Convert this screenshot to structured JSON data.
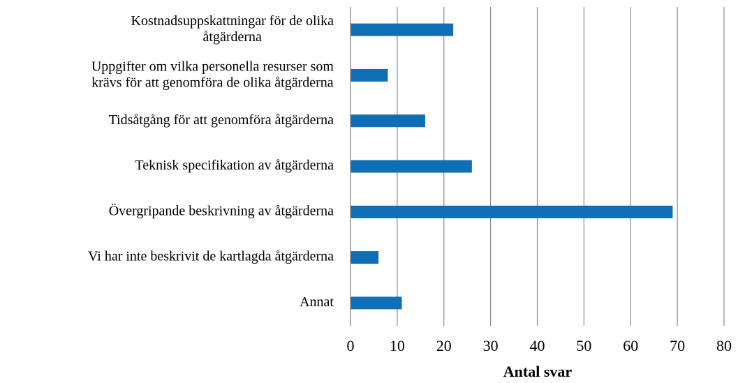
{
  "chart_data": {
    "type": "bar",
    "orientation": "horizontal",
    "categories": [
      "Kostnadsuppskattningar för de olika\nåtgärderna",
      "Uppgifter om vilka personella resurser som\nkrävs för att genomföra de olika åtgärderna",
      "Tidsåtgång för att genomföra åtgärderna",
      "Teknisk specifikation av åtgärderna",
      "Övergripande beskrivning av åtgärderna",
      "Vi har inte beskrivit de kartlagda åtgärderna",
      "Annat"
    ],
    "values": [
      22,
      8,
      16,
      26,
      69,
      6,
      11
    ],
    "color": "#0f6eb4",
    "xlabel": "Antal svar",
    "xlim": [
      0,
      80
    ],
    "xticks": [
      0,
      10,
      20,
      30,
      40,
      50,
      60,
      70,
      80
    ],
    "grid": true
  }
}
